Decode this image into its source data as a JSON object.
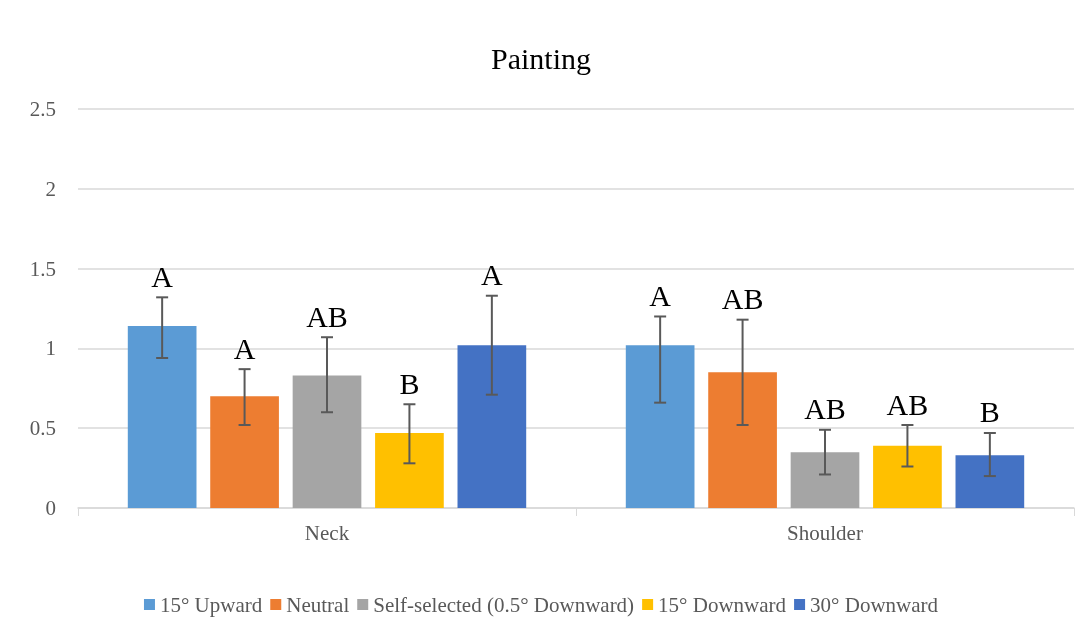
{
  "chart_data": {
    "type": "bar",
    "title": "Painting",
    "categories": [
      "Neck",
      "Shoulder"
    ],
    "series": [
      {
        "name": "15° Upward",
        "color": "#5b9bd5",
        "values": [
          1.14,
          1.02
        ],
        "errors": [
          [
            0.94,
            1.32
          ],
          [
            0.66,
            1.2
          ]
        ],
        "value_labels": [
          "A",
          "A"
        ]
      },
      {
        "name": "Neutral",
        "color": "#ed7d31",
        "values": [
          0.7,
          0.85
        ],
        "errors": [
          [
            0.52,
            0.87
          ],
          [
            0.52,
            1.18
          ]
        ],
        "value_labels": [
          "A",
          "AB"
        ]
      },
      {
        "name": "Self-selected (0.5° Downward)",
        "color": "#a5a5a5",
        "values": [
          0.83,
          0.35
        ],
        "errors": [
          [
            0.6,
            1.07
          ],
          [
            0.21,
            0.49
          ]
        ],
        "value_labels": [
          "AB",
          "AB"
        ]
      },
      {
        "name": "15° Downward",
        "color": "#ffc000",
        "values": [
          0.47,
          0.39
        ],
        "errors": [
          [
            0.28,
            0.65
          ],
          [
            0.26,
            0.52
          ]
        ],
        "value_labels": [
          "B",
          "AB"
        ]
      },
      {
        "name": "30° Downward",
        "color": "#4472c4",
        "values": [
          1.02,
          0.33
        ],
        "errors": [
          [
            0.71,
            1.33
          ],
          [
            0.2,
            0.47
          ]
        ],
        "value_labels": [
          "A",
          "B"
        ]
      }
    ],
    "ylim": [
      0,
      2.5
    ],
    "yticks": [
      0,
      0.5,
      1,
      1.5,
      2,
      2.5
    ],
    "grid": "y",
    "legend": "bottom"
  }
}
